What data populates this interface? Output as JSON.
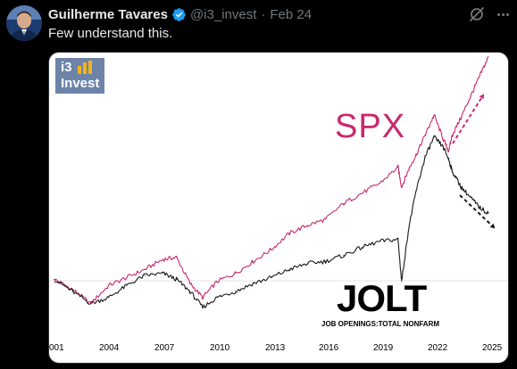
{
  "tweet": {
    "author_name": "Guilherme Tavares",
    "handle": "@i3_invest",
    "separator": "·",
    "date": "Feb 24",
    "text": "Few understand this."
  },
  "icons": [
    "verified-badge-icon",
    "grok-icon",
    "more-options-icon"
  ],
  "colors": {
    "background": "#000000",
    "verified": "#1d9bf0",
    "spx": "#c9296e",
    "jolt": "#1a1a1a"
  },
  "chart_data": {
    "type": "line",
    "logo": {
      "line1": "i3",
      "line2": "Invest"
    },
    "series_labels": {
      "spx": "SPX",
      "jolt": "JOLT",
      "jolt_sub": "JOB OPENINGS:TOTAL NONFARM"
    },
    "x_ticks": [
      "001",
      "2004",
      "2007",
      "2010",
      "2013",
      "2016",
      "2019",
      "2022",
      "2025"
    ],
    "x": [
      2001.0,
      2002.0,
      2003.0,
      2004.0,
      2005.0,
      2006.0,
      2007.0,
      2007.75,
      2008.5,
      2009.2,
      2010.0,
      2011.0,
      2012.0,
      2013.0,
      2014.0,
      2015.0,
      2016.0,
      2017.0,
      2018.0,
      2019.0,
      2020.0,
      2020.2,
      2020.6,
      2021.0,
      2021.5,
      2022.0,
      2022.5,
      2022.8,
      2023.0,
      2023.5,
      2024.0,
      2024.5,
      2025.0
    ],
    "series": [
      {
        "name": "SPX",
        "values": [
          0.14,
          0.09,
          0.02,
          0.11,
          0.15,
          0.19,
          0.24,
          0.25,
          0.12,
          0.05,
          0.13,
          0.17,
          0.23,
          0.29,
          0.37,
          0.41,
          0.44,
          0.52,
          0.57,
          0.62,
          0.7,
          0.6,
          0.69,
          0.76,
          0.86,
          0.96,
          0.84,
          0.78,
          0.86,
          0.95,
          1.05,
          1.15,
          1.25
        ]
      },
      {
        "name": "JOLT",
        "values": [
          0.14,
          0.08,
          0.02,
          0.05,
          0.11,
          0.16,
          0.17,
          0.14,
          0.08,
          0.0,
          0.05,
          0.08,
          0.12,
          0.15,
          0.19,
          0.22,
          0.23,
          0.26,
          0.3,
          0.33,
          0.34,
          0.13,
          0.4,
          0.58,
          0.75,
          0.85,
          0.8,
          0.74,
          0.68,
          0.6,
          0.55,
          0.5,
          0.47
        ]
      }
    ],
    "annotations": [
      {
        "type": "arrow",
        "color": "#c9296e",
        "direction": "up"
      },
      {
        "type": "arrow",
        "color": "#1a1a1a",
        "direction": "down"
      }
    ],
    "grid": false
  }
}
